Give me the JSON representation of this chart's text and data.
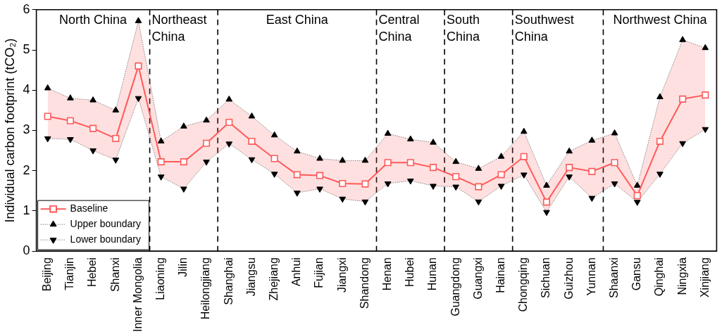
{
  "chart_data": {
    "type": "line",
    "ylabel": "Individual carbon footprint (tCO₂)",
    "categories": [
      "Beijing",
      "Tianjin",
      "Hebei",
      "Shanxi",
      "Inner Mongolia",
      "Liaoning",
      "Jilin",
      "Heilongjiang",
      "Shanghai",
      "Jiangsu",
      "Zhejiang",
      "Anhui",
      "Fujian",
      "Jiangxi",
      "Shandong",
      "Henan",
      "Hubei",
      "Hunan",
      "Guangdong",
      "Guangxi",
      "Hainan",
      "Chongqing",
      "Sichuan",
      "Guizhou",
      "Yunnan",
      "Shaanxi",
      "Gansu",
      "Qinghai",
      "Ningxia",
      "Xinjiang"
    ],
    "series": [
      {
        "name": "Baseline",
        "color": "#ff5a5a",
        "marker": "square",
        "line_style": "solid",
        "values": [
          3.35,
          3.24,
          3.05,
          2.8,
          4.6,
          2.22,
          2.22,
          2.68,
          3.2,
          2.73,
          2.3,
          1.9,
          1.88,
          1.68,
          1.67,
          2.2,
          2.2,
          2.08,
          1.85,
          1.6,
          1.9,
          2.35,
          1.22,
          2.08,
          1.98,
          2.2,
          1.38,
          2.73,
          3.78,
          3.88
        ],
        "upper": [
          4.05,
          3.8,
          3.75,
          3.5,
          5.72,
          2.73,
          3.1,
          3.25,
          3.77,
          3.35,
          2.88,
          2.48,
          2.3,
          2.25,
          2.25,
          2.92,
          2.78,
          2.7,
          2.22,
          2.05,
          2.35,
          2.97,
          1.63,
          2.48,
          2.75,
          2.93,
          1.63,
          3.83,
          5.25,
          5.05
        ],
        "lower": [
          2.8,
          2.78,
          2.5,
          2.27,
          3.8,
          1.85,
          1.55,
          2.22,
          2.67,
          2.28,
          1.92,
          1.45,
          1.55,
          1.3,
          1.23,
          1.68,
          1.75,
          1.62,
          1.6,
          1.23,
          1.62,
          1.9,
          0.97,
          1.85,
          1.32,
          1.68,
          1.22,
          1.92,
          2.68,
          3.03
        ]
      },
      {
        "name": "Upper boundary",
        "color": "#000000",
        "marker": "triangle",
        "line_style": "dotted",
        "values": [
          4.05,
          3.8,
          3.75,
          3.5,
          5.72,
          2.73,
          3.1,
          3.25,
          3.77,
          3.35,
          2.88,
          2.48,
          2.3,
          2.25,
          2.25,
          2.92,
          2.78,
          2.7,
          2.22,
          2.05,
          2.35,
          2.97,
          1.63,
          2.48,
          2.75,
          2.93,
          1.63,
          3.83,
          5.25,
          5.05
        ]
      },
      {
        "name": "Lower boundary",
        "color": "#000000",
        "marker": "triangle",
        "line_style": "dotted",
        "values": [
          2.8,
          2.78,
          2.5,
          2.27,
          3.8,
          1.85,
          1.55,
          2.22,
          2.67,
          2.28,
          1.92,
          1.45,
          1.55,
          1.3,
          1.23,
          1.68,
          1.75,
          1.62,
          1.6,
          1.23,
          1.62,
          1.9,
          0.97,
          1.85,
          1.32,
          1.68,
          1.22,
          1.92,
          2.68,
          3.03
        ]
      }
    ],
    "ylim": [
      0,
      6
    ],
    "yticks": [
      0,
      1,
      2,
      3,
      4,
      5,
      6
    ],
    "grid": false,
    "legend": "bottom left",
    "annotations": [
      "North China",
      "Northeast China",
      "East China",
      "Central China",
      "South China",
      "Southwest China",
      "Northwest China"
    ]
  }
}
